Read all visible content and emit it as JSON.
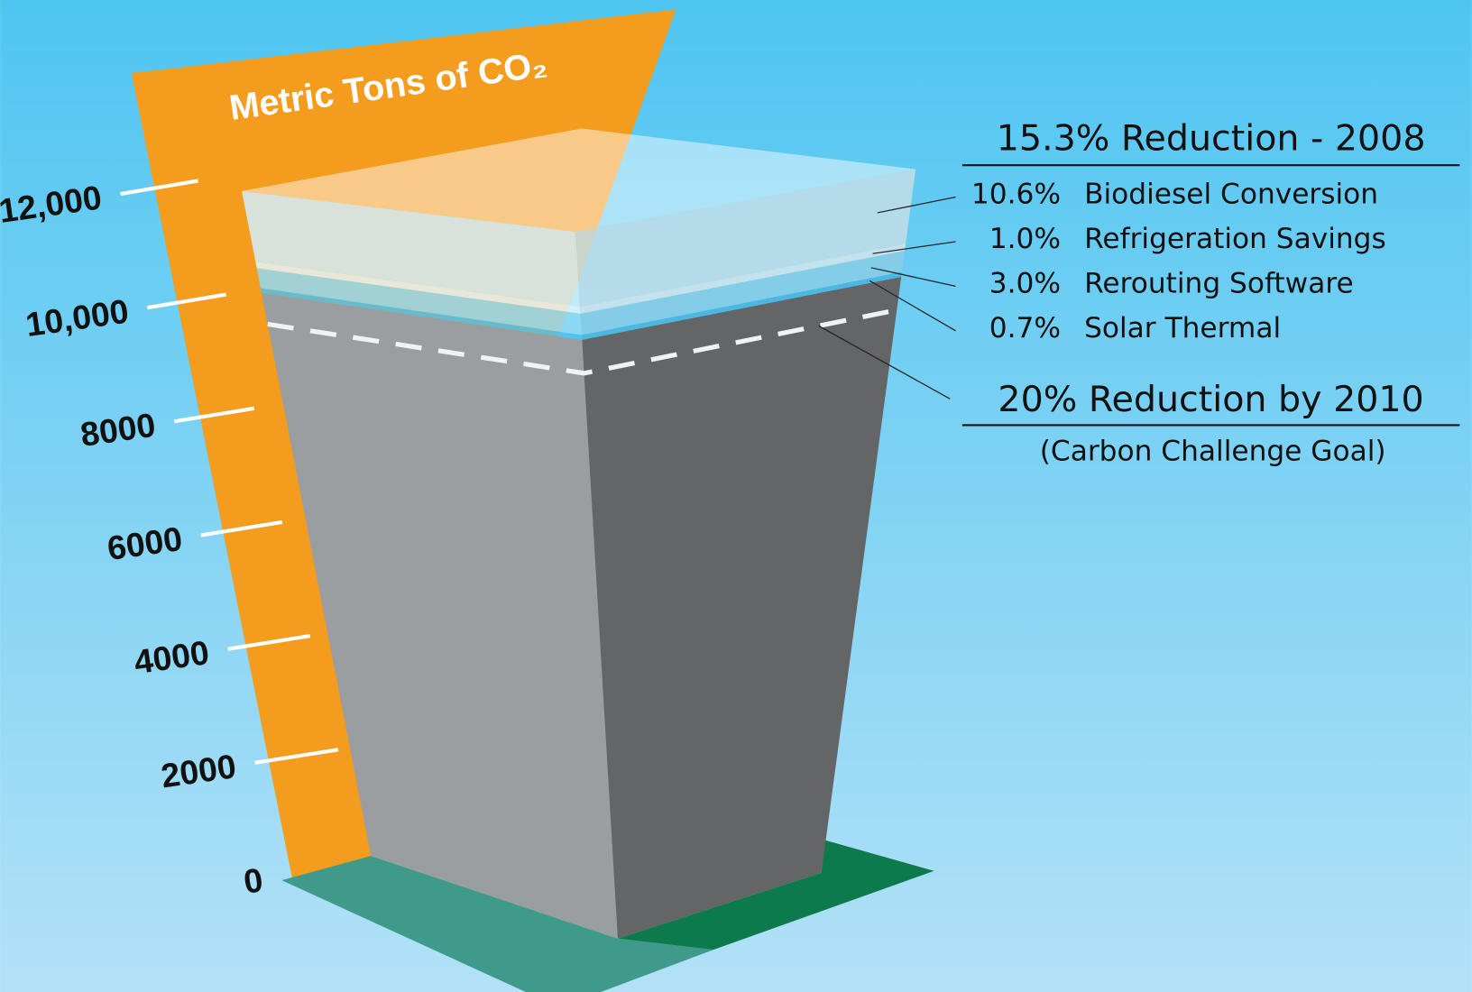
{
  "chart_data": {
    "type": "bar",
    "title": "Metric Tons of CO₂",
    "ylim": [
      0,
      13000
    ],
    "yticks": [
      0,
      2000,
      4000,
      6000,
      8000,
      {
        "value": 10000,
        "label": "10,000"
      },
      {
        "value": 12000,
        "label": "12,000"
      }
    ],
    "series": [
      {
        "color": "#9b9ea0",
        "values": [
          10590
        ]
      },
      {
        "name": "Solar Thermal",
        "percent_label": "0.7%",
        "color": "#4cc2ee",
        "values": [
          88
        ]
      },
      {
        "name": "Rerouting Software",
        "percent_label": "3.0%",
        "color": "#92dbf6",
        "values": [
          375
        ]
      },
      {
        "name": "Refrigeration Savings",
        "percent_label": "1.0%",
        "color": "#e4f6fd",
        "values": [
          125
        ]
      },
      {
        "name": "Biodiesel Conversion",
        "percent_label": "10.6%",
        "color": "#d2effb",
        "values": [
          1325
        ]
      }
    ],
    "reduction_title": "15.3% Reduction - 2008",
    "goal": {
      "label": "20% Reduction by 2010",
      "note": "(Carbon Challenge Goal)",
      "value": 10000
    }
  }
}
